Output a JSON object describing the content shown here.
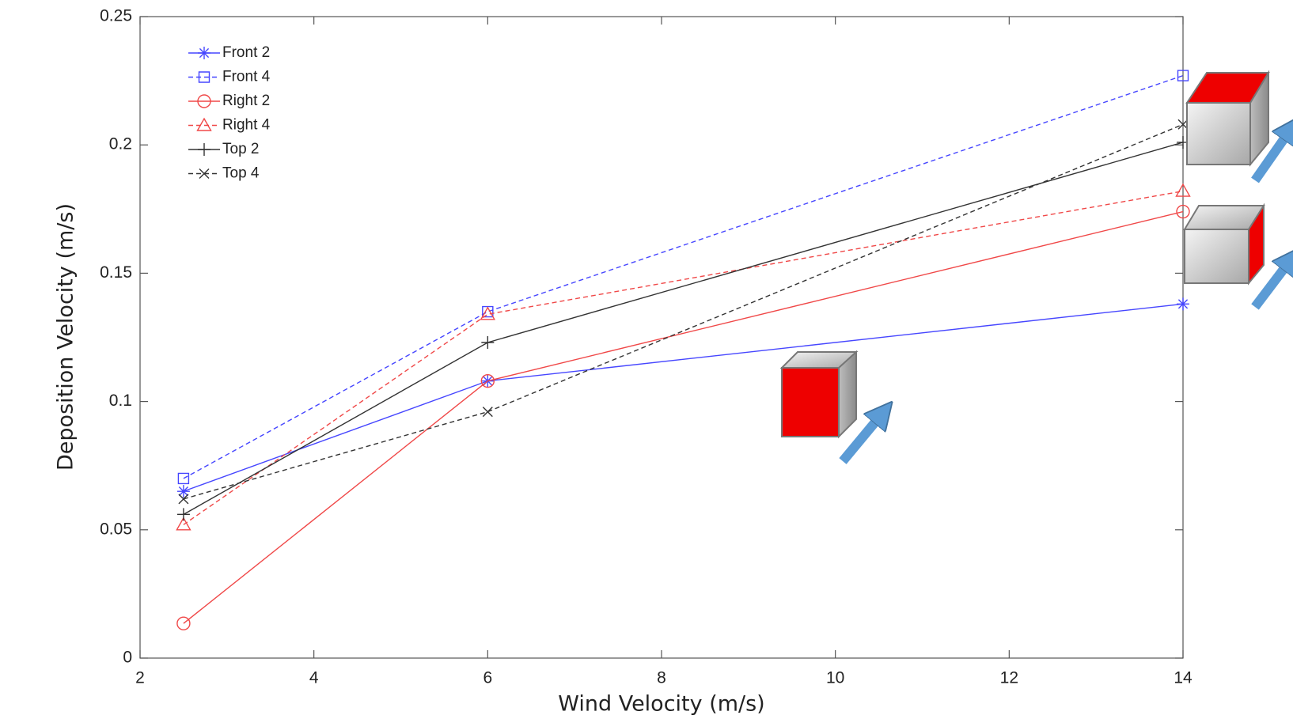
{
  "chart_data": {
    "type": "line",
    "x_label": "Wind Velocity (m/s)",
    "y_label": "Deposition Velocity (m/s)",
    "x": [
      2.5,
      6,
      14
    ],
    "xlim": [
      2,
      14
    ],
    "xticks": [
      2,
      4,
      6,
      8,
      10,
      12,
      14
    ],
    "ylim": [
      0,
      0.25
    ],
    "yticks": [
      0,
      0.05,
      0.1,
      0.15,
      0.2,
      0.25
    ],
    "grid": false,
    "legend": "upper left",
    "series": [
      {
        "name": "Front 2",
        "color": "#4646ff",
        "dash": false,
        "marker": "star",
        "values": [
          0.065,
          0.108,
          0.138
        ]
      },
      {
        "name": "Front 4",
        "color": "#4646ff",
        "dash": true,
        "marker": "square",
        "values": [
          0.07,
          0.135,
          0.227
        ]
      },
      {
        "name": "Right 2",
        "color": "#f04848",
        "dash": false,
        "marker": "circle",
        "values": [
          0.0135,
          0.108,
          0.174
        ]
      },
      {
        "name": "Right 4",
        "color": "#f04848",
        "dash": true,
        "marker": "triangle",
        "values": [
          0.052,
          0.134,
          0.182
        ]
      },
      {
        "name": "Top 2",
        "color": "#333333",
        "dash": false,
        "marker": "plus",
        "values": [
          0.056,
          0.123,
          0.201
        ]
      },
      {
        "name": "Top 4",
        "color": "#333333",
        "dash": true,
        "marker": "x",
        "values": [
          0.062,
          0.096,
          0.208
        ]
      }
    ]
  }
}
